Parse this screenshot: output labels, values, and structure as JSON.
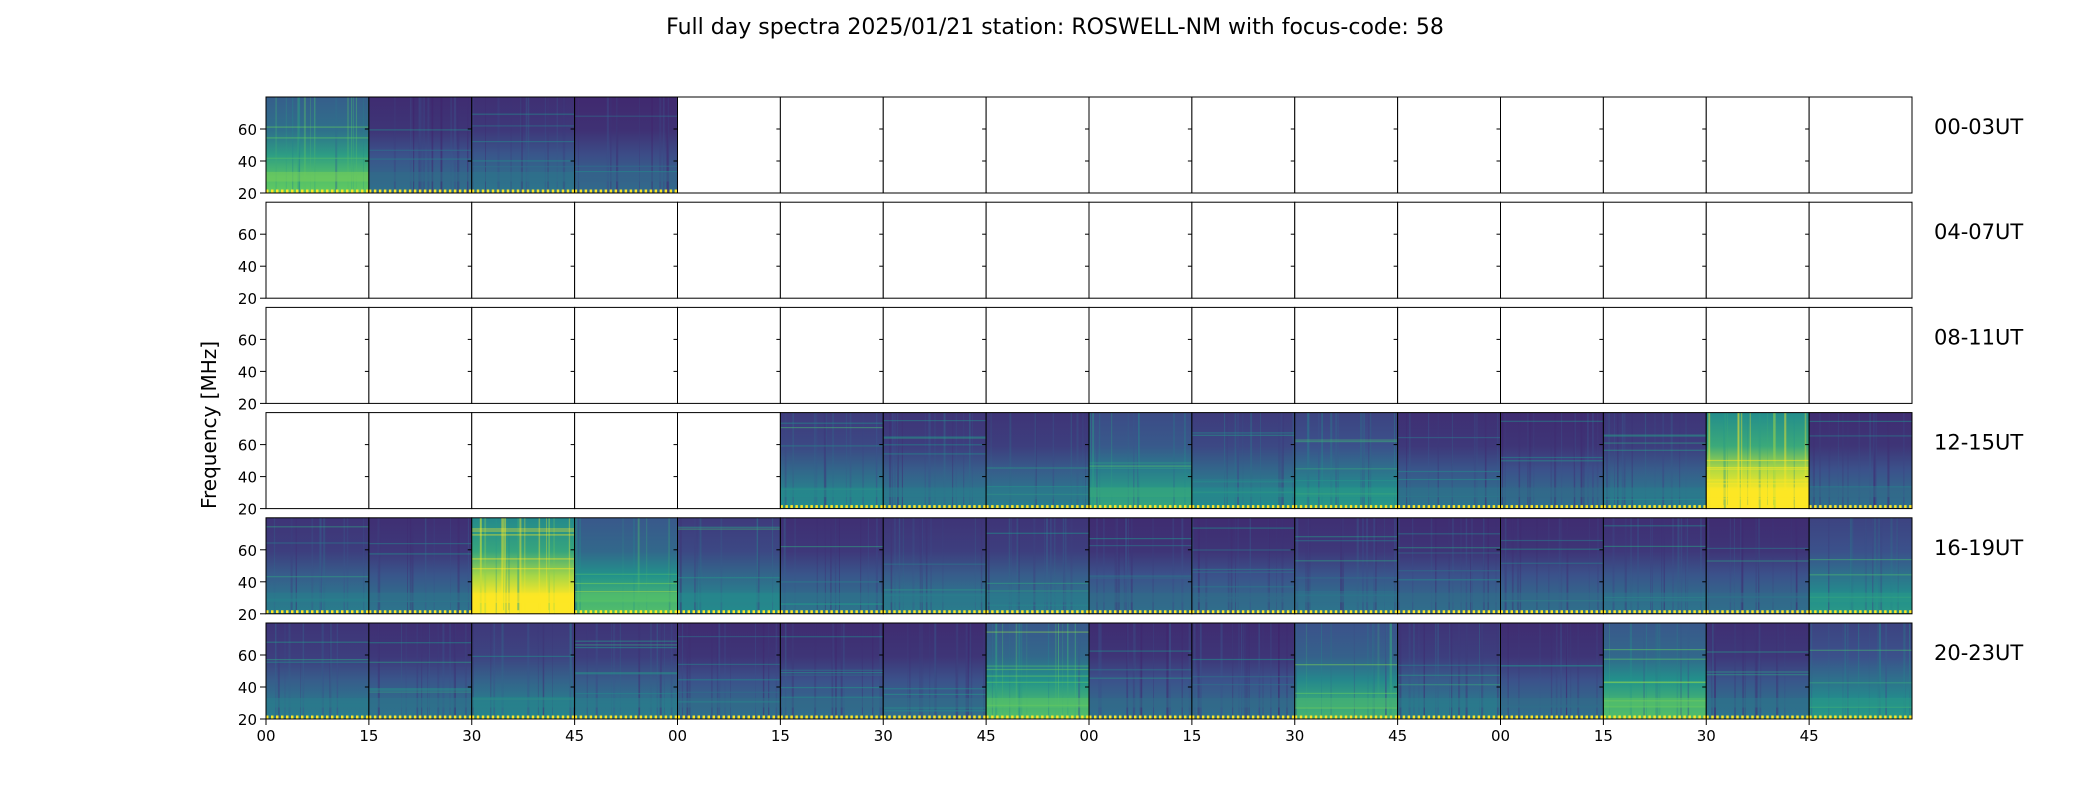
{
  "chart_data": {
    "type": "heatmap",
    "title": "Full day spectra 2025/01/21 station: ROSWELL-NM with focus-code: 58",
    "ylabel": "Frequency [MHz]",
    "ylim": [
      20,
      80
    ],
    "yticks": [
      "20",
      "40",
      "60"
    ],
    "xticks": [
      "00",
      "15",
      "30",
      "45",
      "00",
      "15",
      "30",
      "45",
      "00",
      "15",
      "30",
      "45",
      "00",
      "15",
      "30",
      "45"
    ],
    "colormap": {
      "low": "#440154",
      "mid_low": "#3b528b",
      "mid": "#21918c",
      "mid_high": "#5ec962",
      "high": "#fde725"
    },
    "rows": [
      {
        "label": "00-03UT",
        "panels": [
          {
            "start": "00:00",
            "level": 0.55
          },
          {
            "start": "00:15",
            "level": 0.2
          },
          {
            "start": "00:30",
            "level": 0.22
          },
          {
            "start": "00:45",
            "level": 0.18
          },
          {
            "start": "01:00",
            "level": null
          },
          {
            "start": "01:15",
            "level": null
          },
          {
            "start": "01:30",
            "level": null
          },
          {
            "start": "01:45",
            "level": null
          },
          {
            "start": "02:00",
            "level": null
          },
          {
            "start": "02:15",
            "level": null
          },
          {
            "start": "02:30",
            "level": null
          },
          {
            "start": "02:45",
            "level": null
          },
          {
            "start": "03:00",
            "level": null
          },
          {
            "start": "03:15",
            "level": null
          },
          {
            "start": "03:30",
            "level": null
          },
          {
            "start": "03:45",
            "level": null
          }
        ]
      },
      {
        "label": "04-07UT",
        "panels": [
          {
            "start": "04:00",
            "level": null
          },
          {
            "start": "04:15",
            "level": null
          },
          {
            "start": "04:30",
            "level": null
          },
          {
            "start": "04:45",
            "level": null
          },
          {
            "start": "05:00",
            "level": null
          },
          {
            "start": "05:15",
            "level": null
          },
          {
            "start": "05:30",
            "level": null
          },
          {
            "start": "05:45",
            "level": null
          },
          {
            "start": "06:00",
            "level": null
          },
          {
            "start": "06:15",
            "level": null
          },
          {
            "start": "06:30",
            "level": null
          },
          {
            "start": "06:45",
            "level": null
          },
          {
            "start": "07:00",
            "level": null
          },
          {
            "start": "07:15",
            "level": null
          },
          {
            "start": "07:30",
            "level": null
          },
          {
            "start": "07:45",
            "level": null
          }
        ]
      },
      {
        "label": "08-11UT",
        "panels": [
          {
            "start": "08:00",
            "level": null
          },
          {
            "start": "08:15",
            "level": null
          },
          {
            "start": "08:30",
            "level": null
          },
          {
            "start": "08:45",
            "level": null
          },
          {
            "start": "09:00",
            "level": null
          },
          {
            "start": "09:15",
            "level": null
          },
          {
            "start": "09:30",
            "level": null
          },
          {
            "start": "09:45",
            "level": null
          },
          {
            "start": "10:00",
            "level": null
          },
          {
            "start": "10:15",
            "level": null
          },
          {
            "start": "10:30",
            "level": null
          },
          {
            "start": "10:45",
            "level": null
          },
          {
            "start": "11:00",
            "level": null
          },
          {
            "start": "11:15",
            "level": null
          },
          {
            "start": "11:30",
            "level": null
          },
          {
            "start": "11:45",
            "level": null
          }
        ]
      },
      {
        "label": "12-15UT",
        "panels": [
          {
            "start": "12:00",
            "level": null
          },
          {
            "start": "12:15",
            "level": null
          },
          {
            "start": "12:30",
            "level": null
          },
          {
            "start": "12:45",
            "level": null
          },
          {
            "start": "13:00",
            "level": null
          },
          {
            "start": "13:15",
            "level": 0.3
          },
          {
            "start": "13:30",
            "level": 0.25
          },
          {
            "start": "13:45",
            "level": 0.25
          },
          {
            "start": "14:00",
            "level": 0.4
          },
          {
            "start": "14:15",
            "level": 0.3
          },
          {
            "start": "14:30",
            "level": 0.35
          },
          {
            "start": "14:45",
            "level": 0.22
          },
          {
            "start": "15:00",
            "level": 0.2
          },
          {
            "start": "15:15",
            "level": 0.25
          },
          {
            "start": "15:30",
            "level": 0.95
          },
          {
            "start": "15:45",
            "level": 0.2
          }
        ]
      },
      {
        "label": "16-19UT",
        "panels": [
          {
            "start": "16:00",
            "level": 0.25
          },
          {
            "start": "16:15",
            "level": 0.22
          },
          {
            "start": "16:30",
            "level": 0.92
          },
          {
            "start": "16:45",
            "level": 0.5
          },
          {
            "start": "17:00",
            "level": 0.3
          },
          {
            "start": "17:15",
            "level": 0.22
          },
          {
            "start": "17:30",
            "level": 0.25
          },
          {
            "start": "17:45",
            "level": 0.25
          },
          {
            "start": "18:00",
            "level": 0.2
          },
          {
            "start": "18:15",
            "level": 0.2
          },
          {
            "start": "18:30",
            "level": 0.22
          },
          {
            "start": "18:45",
            "level": 0.2
          },
          {
            "start": "19:00",
            "level": 0.2
          },
          {
            "start": "19:15",
            "level": 0.22
          },
          {
            "start": "19:30",
            "level": 0.2
          },
          {
            "start": "19:45",
            "level": 0.35
          }
        ]
      },
      {
        "label": "20-23UT",
        "panels": [
          {
            "start": "20:00",
            "level": 0.25
          },
          {
            "start": "20:15",
            "level": 0.22
          },
          {
            "start": "20:30",
            "level": 0.28
          },
          {
            "start": "20:45",
            "level": 0.25
          },
          {
            "start": "21:00",
            "level": 0.2
          },
          {
            "start": "21:15",
            "level": 0.2
          },
          {
            "start": "21:30",
            "level": 0.2
          },
          {
            "start": "21:45",
            "level": 0.5
          },
          {
            "start": "22:00",
            "level": 0.2
          },
          {
            "start": "22:15",
            "level": 0.2
          },
          {
            "start": "22:30",
            "level": 0.45
          },
          {
            "start": "22:45",
            "level": 0.25
          },
          {
            "start": "23:00",
            "level": 0.2
          },
          {
            "start": "23:15",
            "level": 0.5
          },
          {
            "start": "23:30",
            "level": 0.22
          },
          {
            "start": "23:45",
            "level": 0.35
          }
        ]
      }
    ]
  }
}
